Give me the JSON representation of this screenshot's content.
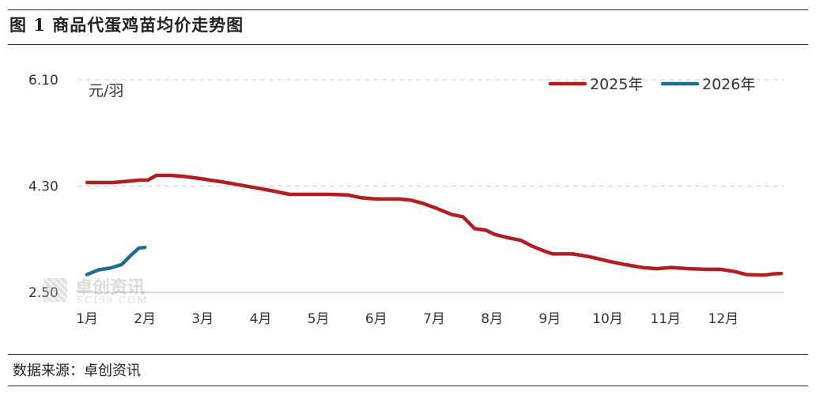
{
  "figure_title": "图 1 商品代蛋鸡苗均价走势图",
  "source_text": "数据来源：卓创资讯",
  "watermark": {
    "cn": "卓创资讯",
    "en": "SCI99.COM"
  },
  "colors": {
    "series_2025": "#b01e22",
    "series_2026": "#1f6e8c",
    "grid": "#d0d0d0"
  },
  "chart_data": {
    "type": "line",
    "title": "图 1 商品代蛋鸡苗均价走势图",
    "ylabel": "元/羽",
    "xlabel": "",
    "ylim": [
      2.5,
      6.1
    ],
    "yticks": [
      {
        "value": 2.5,
        "label": "2.50"
      },
      {
        "value": 4.3,
        "label": "4.30"
      },
      {
        "value": 6.1,
        "label": "6.10"
      }
    ],
    "xlim": [
      1,
      13
    ],
    "x_ticks": [
      {
        "value": 1,
        "label": "1月"
      },
      {
        "value": 2,
        "label": "2月"
      },
      {
        "value": 3,
        "label": "3月"
      },
      {
        "value": 4,
        "label": "4月"
      },
      {
        "value": 5,
        "label": "5月"
      },
      {
        "value": 6,
        "label": "6月"
      },
      {
        "value": 7,
        "label": "7月"
      },
      {
        "value": 8,
        "label": "8月"
      },
      {
        "value": 9,
        "label": "9月"
      },
      {
        "value": 10,
        "label": "10月"
      },
      {
        "value": 11,
        "label": "11月"
      },
      {
        "value": 12,
        "label": "12月"
      }
    ],
    "grid": "horizontal dashed",
    "legend_position": "top-right",
    "series": [
      {
        "name": "2025年",
        "x": [
          1.0,
          1.25,
          1.45,
          1.7,
          1.9,
          2.05,
          2.2,
          2.45,
          2.7,
          3.0,
          3.4,
          3.8,
          4.2,
          4.5,
          4.8,
          5.0,
          5.2,
          5.5,
          5.75,
          6.0,
          6.2,
          6.4,
          6.6,
          6.8,
          7.05,
          7.3,
          7.5,
          7.7,
          7.9,
          8.05,
          8.3,
          8.5,
          8.7,
          8.9,
          9.05,
          9.4,
          9.7,
          10.0,
          10.3,
          10.6,
          10.85,
          11.1,
          11.4,
          11.7,
          11.95,
          12.2,
          12.4,
          12.7,
          12.85,
          13.0
        ],
        "values": [
          4.36,
          4.36,
          4.36,
          4.38,
          4.4,
          4.4,
          4.48,
          4.48,
          4.46,
          4.42,
          4.36,
          4.29,
          4.22,
          4.16,
          4.16,
          4.16,
          4.16,
          4.15,
          4.1,
          4.08,
          4.08,
          4.08,
          4.06,
          4.01,
          3.92,
          3.82,
          3.78,
          3.58,
          3.55,
          3.48,
          3.42,
          3.38,
          3.28,
          3.2,
          3.15,
          3.15,
          3.1,
          3.03,
          2.97,
          2.92,
          2.9,
          2.92,
          2.9,
          2.89,
          2.89,
          2.85,
          2.8,
          2.79,
          2.81,
          2.82
        ]
      },
      {
        "name": "2026年",
        "x": [
          1.0,
          1.2,
          1.4,
          1.6,
          1.75,
          1.9,
          2.0
        ],
        "values": [
          2.8,
          2.88,
          2.91,
          2.97,
          3.12,
          3.25,
          3.26
        ]
      }
    ]
  }
}
